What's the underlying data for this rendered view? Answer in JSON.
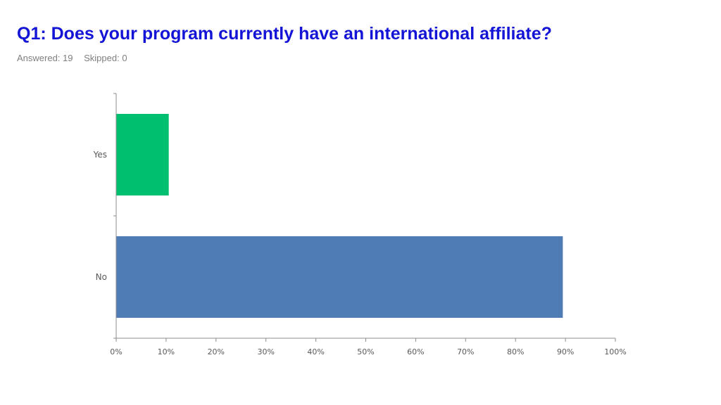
{
  "header": {
    "title": "Q1: Does your program currently have an international affiliate?",
    "answered_label": "Answered: 19",
    "skipped_label": "Skipped: 0"
  },
  "chart_data": {
    "type": "bar",
    "orientation": "horizontal",
    "categories": [
      "Yes",
      "No"
    ],
    "values": [
      10.53,
      89.47
    ],
    "colors": [
      "#00bf6f",
      "#507cb6"
    ],
    "xlim": [
      0,
      100
    ],
    "xticks": [
      "0%",
      "10%",
      "20%",
      "30%",
      "40%",
      "50%",
      "60%",
      "70%",
      "80%",
      "90%",
      "100%"
    ],
    "grid": false,
    "legend": "none"
  }
}
